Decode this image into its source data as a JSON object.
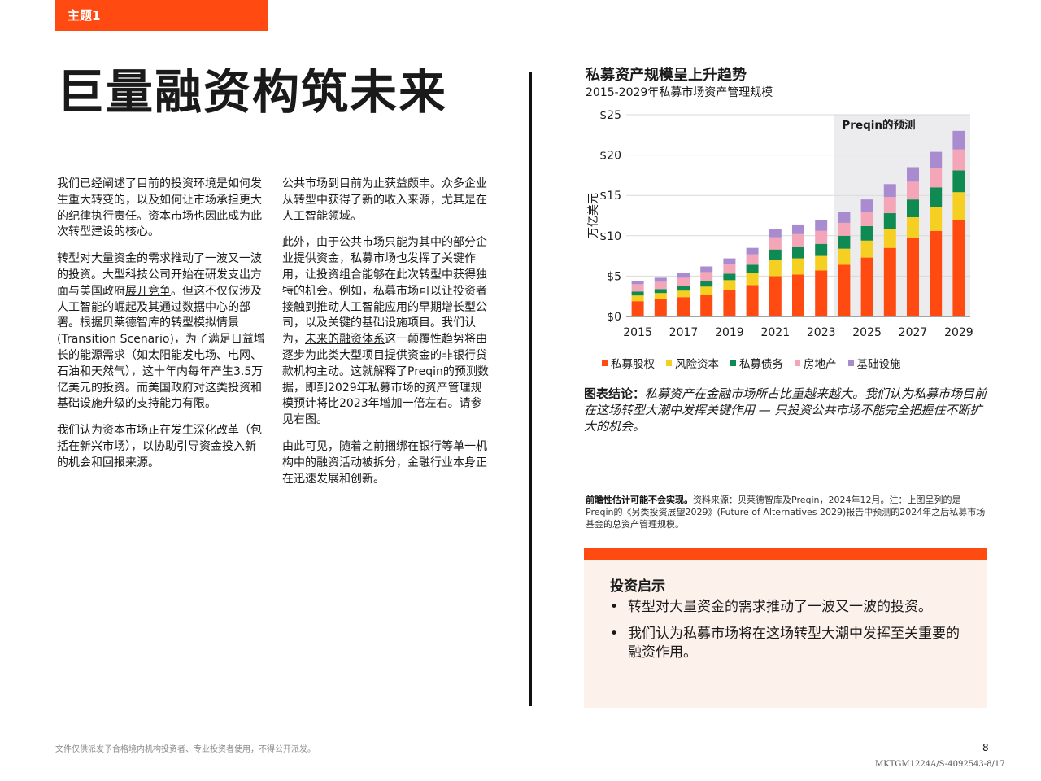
{
  "header": {
    "topic": "主题1",
    "title": "巨量融资构筑未来"
  },
  "col1": {
    "p1": "我们已经阐述了目前的投资环境是如何发生重大转变的，以及如何让市场承担更大的纪律执行责任。资本市场也因此成为此次转型建设的核心。",
    "p2a": "转型对大量资金的需求推动了一波又一波的投资。大型科技公司开始在研发支出方面与美国政府",
    "p2link": "展开竞争",
    "p2b": "。但这不仅仅涉及人工智能的崛起及其通过数据中心的部署。根据贝莱德智库的转型模拟情景(Transition Scenario)，为了满足日益增长的能源需求（如太阳能发电场、电网、石油和天然气），这十年内每年产生3.5万亿美元的投资。而美国政府对这类投资和基础设施升级的支持能力有限。",
    "p3": "我们认为资本市场正在发生深化改革（包括在新兴市场），以协助引导资金投入新的机会和回报来源。"
  },
  "col2": {
    "p1": "公共市场到目前为止获益颇丰。众多企业从转型中获得了新的收入来源，尤其是在人工智能领域。",
    "p2a": "此外，由于公共市场只能为其中的部分企业提供资金，私募市场也发挥了关键作用，让投资组合能够在此次转型中获得独特的机会。例如，私募市场可以让投资者接触到推动人工智能应用的早期增长型公司，以及关键的基础设施项目。我们认为，",
    "p2link": "未来的融资体系",
    "p2b": "这一颠覆性趋势将由逐步为此类大型项目提供资金的非银行贷款机构主动。这就解释了Preqin的预测数据，即到2029年私募市场的资产管理规模预计将比2023年增加一倍左右。请参见右图。",
    "p3": "由此可见，随着之前捆绑在银行等单一机构中的融资活动被拆分，金融行业本身正在迅速发展和创新。"
  },
  "chart": {
    "title": "私募资产规模呈上升趋势",
    "subtitle": "2015-2029年私募市场资产管理规模",
    "forecast_label": "Preqin的预测",
    "ylabel": "万亿美元"
  },
  "chart_data": {
    "type": "bar",
    "stacked": true,
    "categories": [
      "2015",
      "2016",
      "2017",
      "2018",
      "2019",
      "2020",
      "2021",
      "2022",
      "2023",
      "2024",
      "2025",
      "2026",
      "2027",
      "2028",
      "2029"
    ],
    "x_tick_labels": [
      "2015",
      "2017",
      "2019",
      "2021",
      "2023",
      "2025",
      "2027",
      "2029"
    ],
    "y_tick_labels": [
      "$0",
      "$5",
      "$10",
      "$15",
      "$20",
      "$25"
    ],
    "ylim": [
      0,
      25
    ],
    "forecast_from": "2024",
    "series": [
      {
        "name": "私募股权",
        "color": "#ff4b12",
        "values": [
          1.9,
          2.2,
          2.4,
          2.7,
          3.3,
          3.9,
          5.0,
          5.2,
          5.7,
          6.4,
          7.3,
          8.5,
          9.7,
          10.6,
          11.9
        ]
      },
      {
        "name": "风险资本",
        "color": "#f5d023",
        "values": [
          0.7,
          0.7,
          0.8,
          1.0,
          1.2,
          1.5,
          2.0,
          2.0,
          1.8,
          2.0,
          2.1,
          2.3,
          2.6,
          3.0,
          3.5
        ]
      },
      {
        "name": "私募债务",
        "color": "#0f8a52",
        "values": [
          0.5,
          0.5,
          0.6,
          0.7,
          0.8,
          1.0,
          1.3,
          1.4,
          1.5,
          1.6,
          1.8,
          2.0,
          2.2,
          2.4,
          2.7
        ]
      },
      {
        "name": "房地产",
        "color": "#f4a5b8",
        "values": [
          0.9,
          0.9,
          1.0,
          1.1,
          1.2,
          1.3,
          1.5,
          1.6,
          1.6,
          1.6,
          1.8,
          2.0,
          2.2,
          2.4,
          2.6
        ]
      },
      {
        "name": "基础设施",
        "color": "#a98bcf",
        "values": [
          0.4,
          0.5,
          0.6,
          0.7,
          0.7,
          0.8,
          1.0,
          1.2,
          1.3,
          1.4,
          1.5,
          1.6,
          1.8,
          2.0,
          2.3
        ]
      }
    ],
    "grid": true
  },
  "conclusion": {
    "label": "图表结论：",
    "text": "私募资产在金融市场所占比重越来越大。我们认为私募市场目前在这场转型大潮中发挥关键作用 — 只投资公共市场不能完全把握住不断扩大的机会。"
  },
  "source": {
    "bold": "前瞻性估计可能不会实现。",
    "text": "资料来源：贝莱德智库及Preqin，2024年12月。注：上图呈列的是Preqin的《另类投资展望2029》(Future of Alternatives 2029)报告中预测的2024年之后私募市场基金的总资产管理规模。"
  },
  "takeaway": {
    "title": "投资启示",
    "items": [
      "转型对大量资金的需求推动了一波又一波的投资。",
      "我们认为私募市场将在这场转型大潮中发挥至关重要的融资作用。"
    ]
  },
  "footer": {
    "note": "文件仅供派发予合格境内机构投资者、专业投资者使用，不得公开派发。",
    "page": "8",
    "code": "MKTGM1224A/S-4092543-8/17"
  }
}
